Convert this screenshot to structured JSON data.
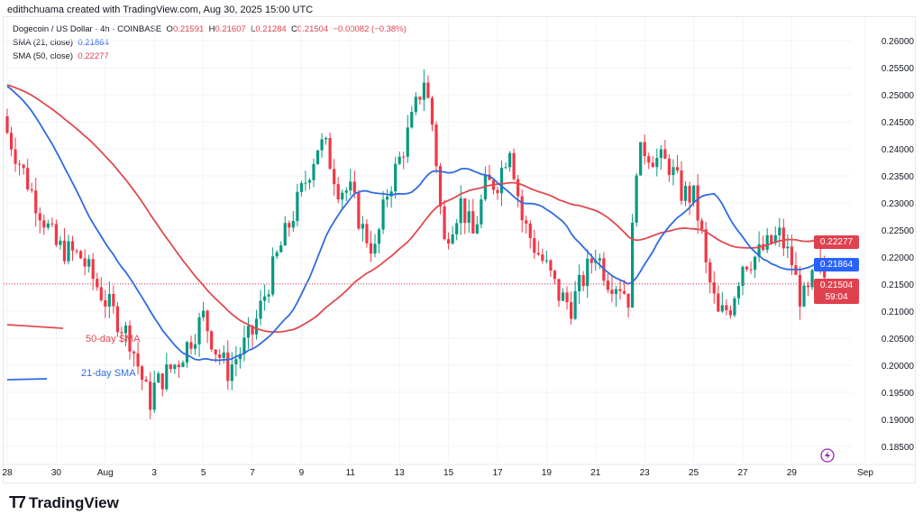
{
  "header": {
    "credit": "edithchuama created with TradingView.com, Aug 30, 2025 15:00 UTC",
    "symbol": "Dogecoin / US Dollar · 4h · COINBASE",
    "o_label": "O",
    "o": "0.21591",
    "h_label": "H",
    "h": "0.21607",
    "l_label": "L",
    "l": "0.21284",
    "c_label": "C",
    "c": "0.21504",
    "change": "−0.00082 (−0.38%)",
    "sma21_label": "SMA (21, close)",
    "sma21": "0.21864",
    "sma50_label": "SMA (50, close)",
    "sma50": "0.22277"
  },
  "badges": {
    "sma50": "0.22277",
    "sma21": "0.21864",
    "price": "0.21504",
    "countdown": "59:04"
  },
  "annotations": {
    "sma50": "50-day SMA",
    "sma21": "21-day SMA"
  },
  "logo": {
    "text": "TradingView"
  },
  "colors": {
    "up": "#089981",
    "down": "#f23645",
    "sma21": "#2f6bdf",
    "sma50": "#e04a4f"
  },
  "chart_data": {
    "type": "candlestick",
    "title": "Dogecoin / US Dollar · 4h · COINBASE",
    "x_ticks": [
      "28",
      "30",
      "Aug",
      "3",
      "5",
      "7",
      "9",
      "11",
      "13",
      "15",
      "17",
      "19",
      "21",
      "23",
      "25",
      "27",
      "29",
      "Sep"
    ],
    "x_tick_days": [
      0,
      2,
      4,
      6,
      8,
      10,
      12,
      14,
      16,
      18,
      20,
      22,
      24,
      26,
      28,
      30,
      32,
      35
    ],
    "y_ticks": [
      "0.26000",
      "0.25500",
      "0.25000",
      "0.24500",
      "0.24000",
      "0.23500",
      "0.23000",
      "0.22500",
      "0.22000",
      "0.21500",
      "0.21000",
      "0.20500",
      "0.20000",
      "0.19500",
      "0.19000",
      "0.18500"
    ],
    "ylim": [
      0.1825,
      0.2625
    ],
    "close_keyframes_days_since_jul28": [
      [
        0,
        0.243
      ],
      [
        1,
        0.232
      ],
      [
        2,
        0.222
      ],
      [
        3,
        0.22
      ],
      [
        4,
        0.212
      ],
      [
        5,
        0.205
      ],
      [
        5.8,
        0.193
      ],
      [
        6,
        0.196
      ],
      [
        7,
        0.201
      ],
      [
        8,
        0.209
      ],
      [
        8.5,
        0.203
      ],
      [
        9,
        0.199
      ],
      [
        10,
        0.206
      ],
      [
        11,
        0.22
      ],
      [
        12,
        0.232
      ],
      [
        12.7,
        0.241
      ],
      [
        13,
        0.24
      ],
      [
        13.5,
        0.233
      ],
      [
        14,
        0.232
      ],
      [
        14.5,
        0.225
      ],
      [
        15,
        0.221
      ],
      [
        15.5,
        0.232
      ],
      [
        16,
        0.238
      ],
      [
        16.5,
        0.245
      ],
      [
        17,
        0.253
      ],
      [
        17.4,
        0.243
      ],
      [
        17.8,
        0.222
      ],
      [
        18,
        0.225
      ],
      [
        18.5,
        0.23
      ],
      [
        19,
        0.224
      ],
      [
        19.5,
        0.233
      ],
      [
        20,
        0.234
      ],
      [
        20.5,
        0.241
      ],
      [
        21,
        0.227
      ],
      [
        21.5,
        0.222
      ],
      [
        22,
        0.218
      ],
      [
        22.5,
        0.213
      ],
      [
        23,
        0.211
      ],
      [
        23.5,
        0.216
      ],
      [
        24,
        0.221
      ],
      [
        24.5,
        0.216
      ],
      [
        25,
        0.215
      ],
      [
        25.4,
        0.212
      ],
      [
        25.6,
        0.237
      ],
      [
        26,
        0.24
      ],
      [
        26.5,
        0.238
      ],
      [
        27,
        0.237
      ],
      [
        27.5,
        0.232
      ],
      [
        28,
        0.231
      ],
      [
        28.3,
        0.225
      ],
      [
        28.5,
        0.218
      ],
      [
        29,
        0.209
      ],
      [
        29.5,
        0.211
      ],
      [
        30,
        0.219
      ],
      [
        30.5,
        0.22
      ],
      [
        31,
        0.222
      ],
      [
        31.5,
        0.224
      ],
      [
        32,
        0.219
      ],
      [
        32.3,
        0.213
      ],
      [
        32.6,
        0.212
      ],
      [
        33,
        0.218
      ],
      [
        33.6,
        0.21504
      ]
    ],
    "interval_hours": 4,
    "sma_periods": [
      21,
      50
    ],
    "last": {
      "open": 0.21591,
      "high": 0.21607,
      "low": 0.21284,
      "close": 0.21504
    },
    "sma21_last": 0.21864,
    "sma50_last": 0.22277
  }
}
